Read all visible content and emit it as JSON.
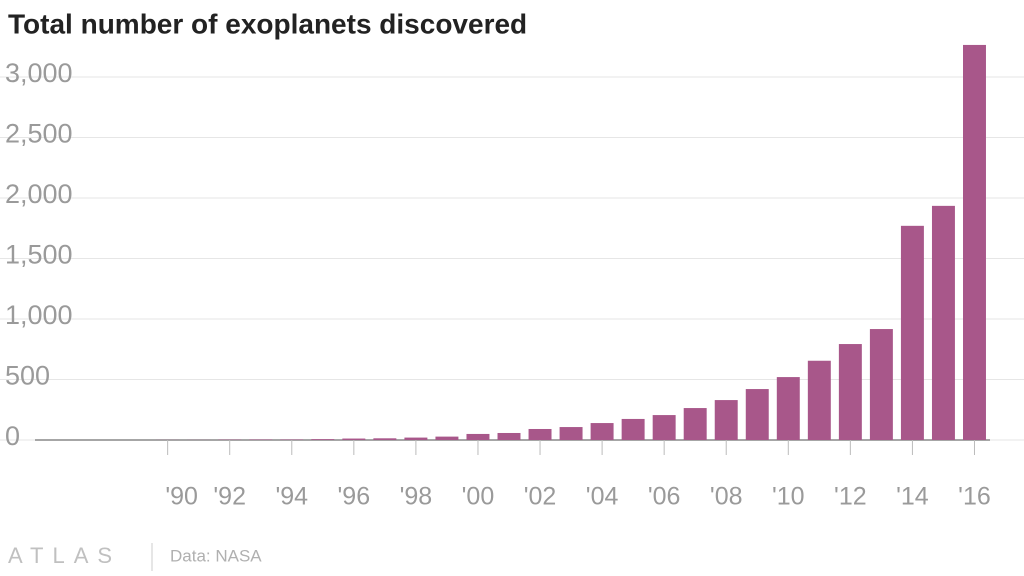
{
  "chart_data": {
    "type": "bar",
    "title": "Total number of exoplanets discovered",
    "categories": [
      null,
      null,
      null,
      null,
      "'90",
      null,
      "'92",
      null,
      "'94",
      null,
      "'96",
      null,
      "'98",
      null,
      "'00",
      null,
      "'02",
      null,
      "'04",
      null,
      "'06",
      null,
      "'08",
      null,
      "'10",
      null,
      "'12",
      null,
      "'14",
      null,
      "'16"
    ],
    "values": [
      null,
      null,
      null,
      null,
      1,
      1,
      3,
      4,
      4,
      7,
      12,
      14,
      20,
      28,
      50,
      58,
      91,
      107,
      140,
      174,
      206,
      264,
      330,
      421,
      520,
      655,
      793,
      917,
      1770,
      1935,
      3265
    ],
    "color": "#a8578a",
    "ylim": [
      0,
      3300
    ],
    "yticks": [
      0,
      500,
      {
        "value": 1000,
        "label": "1,000"
      },
      {
        "value": 1500,
        "label": "1,500"
      },
      {
        "value": 2000,
        "label": "2,000"
      },
      {
        "value": 2500,
        "label": "2,500"
      },
      {
        "value": 3000,
        "label": "3,000"
      }
    ],
    "grid": true,
    "logo": "ATLAS",
    "source": "Data: NASA"
  }
}
